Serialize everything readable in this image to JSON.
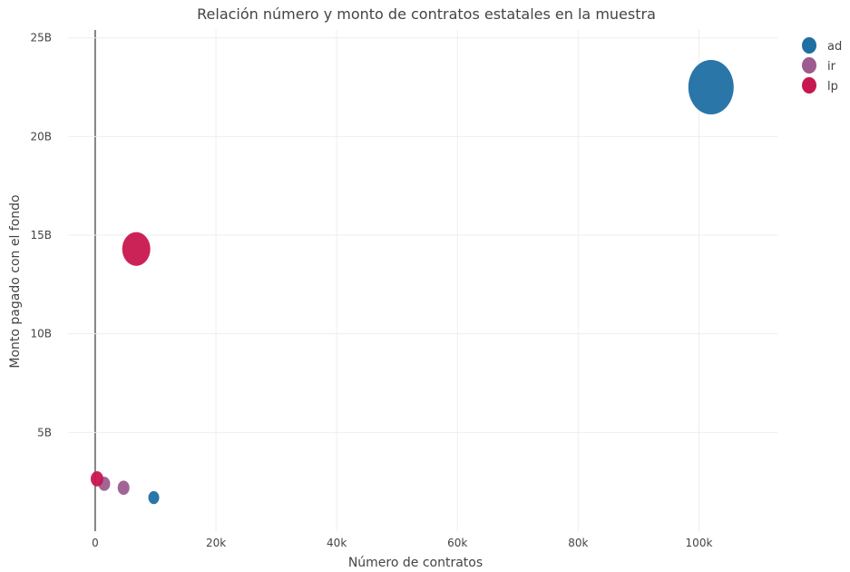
{
  "chart_data": {
    "type": "scatter",
    "title": "Relación número y monto de contratos estatales en la muestra",
    "xlabel": "Número de contratos",
    "ylabel": "Monto pagado con el fondo",
    "xlim": [
      -4500,
      113000
    ],
    "ylim": [
      0,
      25.4
    ],
    "x_ticks": [
      0,
      20000,
      40000,
      60000,
      80000,
      100000
    ],
    "x_tick_labels": [
      "0",
      "20k",
      "40k",
      "60k",
      "80k",
      "100k"
    ],
    "y_ticks": [
      5,
      10,
      15,
      20,
      25
    ],
    "y_tick_labels": [
      "5B",
      "10B",
      "15B",
      "20B",
      "25B"
    ],
    "grid": true,
    "legend_position": "top-right",
    "series": [
      {
        "name": "ad",
        "color": "#1f6fa3",
        "points": [
          {
            "x": 102000,
            "y": 22.5,
            "marker_size": 50
          },
          {
            "x": 9700,
            "y": 1.7,
            "marker_size": 12
          }
        ]
      },
      {
        "name": "ir",
        "color": "#9c5c8f",
        "points": [
          {
            "x": 1500,
            "y": 2.4,
            "marker_size": 13
          },
          {
            "x": 4700,
            "y": 2.2,
            "marker_size": 13
          }
        ]
      },
      {
        "name": "lp",
        "color": "#c8174f",
        "points": [
          {
            "x": 6800,
            "y": 14.3,
            "marker_size": 31
          },
          {
            "x": 300,
            "y": 2.65,
            "marker_size": 14
          }
        ]
      }
    ]
  }
}
